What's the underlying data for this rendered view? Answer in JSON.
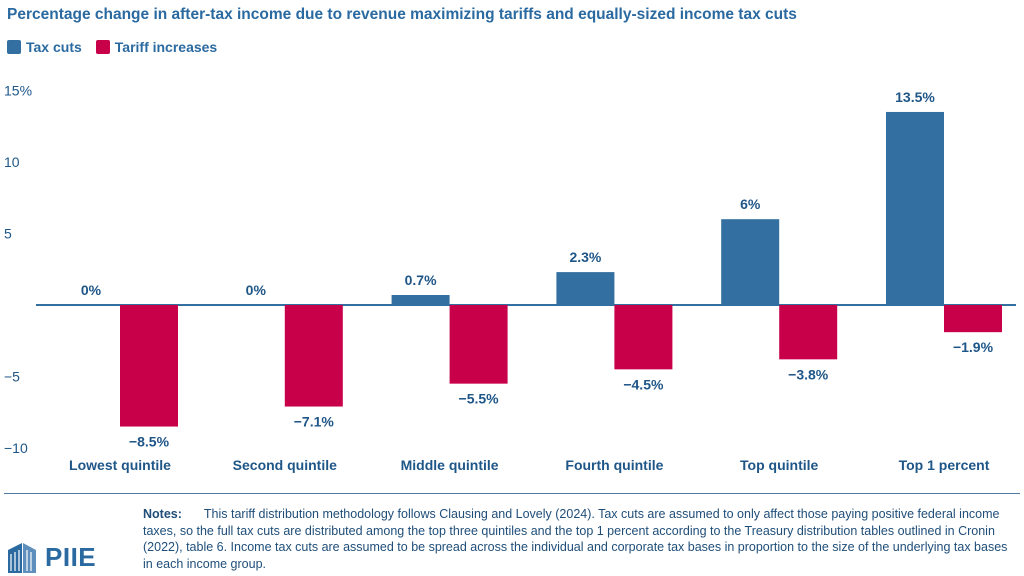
{
  "chart_data": {
    "type": "bar",
    "title": "Percentage change in after-tax income due to revenue maximizing tariffs and equally-sized income tax cuts",
    "categories": [
      "Lowest quintile",
      "Second quintile",
      "Middle quintile",
      "Fourth quintile",
      "Top quintile",
      "Top 1 percent"
    ],
    "series": [
      {
        "name": "Tax cuts",
        "color": "#336fa0",
        "values": [
          0,
          0,
          0.7,
          2.3,
          6,
          13.5
        ],
        "labels": [
          "0%",
          "0%",
          "0.7%",
          "2.3%",
          "6%",
          "13.5%"
        ]
      },
      {
        "name": "Tariff increases",
        "color": "#c8004a",
        "values": [
          -8.5,
          -7.1,
          -5.5,
          -4.5,
          -3.8,
          -1.9
        ],
        "labels": [
          "−8.5%",
          "−7.1%",
          "−5.5%",
          "−4.5%",
          "−3.8%",
          "−1.9%"
        ]
      }
    ],
    "ylim": [
      -10,
      15
    ],
    "yticks": [
      -10,
      -5,
      5,
      10,
      15
    ],
    "ytick_labels": [
      "−10",
      "−5",
      "5",
      "10",
      "15%"
    ],
    "xlabel": "",
    "ylabel": "",
    "grid": false,
    "legend": "top-left"
  },
  "notes": {
    "label": "Notes:",
    "text": "This tariff distribution methodology follows Clausing and Lovely (2024). Tax cuts are assumed to only affect those paying positive federal income taxes, so the full tax cuts are distributed among the top three quintiles and the top 1 percent according to the Treasury distribution tables outlined in Cronin (2022), table 6. Income tax cuts are assumed to be spread across the individual and corporate tax bases in proportion to the size of the underlying tax bases in each income group."
  },
  "logo": {
    "text": "PIIE",
    "icon": "piie-building-icon"
  }
}
